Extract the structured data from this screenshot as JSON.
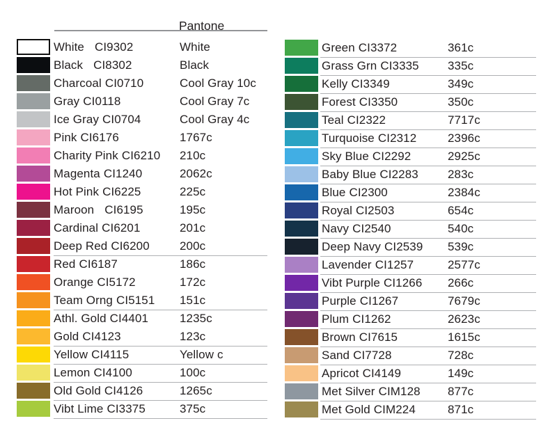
{
  "header": {
    "pantone_label": "Pantone"
  },
  "text_color": "#231f20",
  "rule_color": "#aeb0b3",
  "columns": [
    {
      "side": "left",
      "rows": [
        {
          "name": "White",
          "code": "CI9302",
          "pantone": "White",
          "hex": "#ffffff",
          "border": true,
          "wide_gap": true,
          "underline": false
        },
        {
          "name": "Black",
          "code": "CI8302",
          "pantone": "Black",
          "hex": "#0b0d10",
          "border": false,
          "wide_gap": true,
          "underline": false
        },
        {
          "name": "Charcoal",
          "code": "CI0710",
          "pantone": "Cool Gray 10c",
          "hex": "#646b66",
          "border": false,
          "wide_gap": false,
          "underline": false
        },
        {
          "name": "Gray",
          "code": "CI0118",
          "pantone": "Cool Gray 7c",
          "hex": "#9aa0a1",
          "border": false,
          "wide_gap": false,
          "underline": false
        },
        {
          "name": "Ice Gray",
          "code": "CI0704",
          "pantone": "Cool Gray 4c",
          "hex": "#c2c4c6",
          "border": false,
          "wide_gap": false,
          "underline": false
        },
        {
          "name": "Pink",
          "code": "CI6176",
          "pantone": "1767c",
          "hex": "#f4a6c1",
          "border": false,
          "wide_gap": false,
          "underline": false
        },
        {
          "name": "Charity Pink",
          "code": "CI6210",
          "pantone": "210c",
          "hex": "#f27eb4",
          "border": false,
          "wide_gap": false,
          "underline": false
        },
        {
          "name": "Magenta",
          "code": "CI1240",
          "pantone": "2062c",
          "hex": "#b34b97",
          "border": false,
          "wide_gap": false,
          "underline": false
        },
        {
          "name": "Hot Pink",
          "code": "CI6225",
          "pantone": "225c",
          "hex": "#ed128d",
          "border": false,
          "wide_gap": false,
          "underline": false
        },
        {
          "name": "Maroon",
          "code": "CI6195",
          "pantone": "195c",
          "hex": "#7b3140",
          "border": false,
          "wide_gap": true,
          "underline": false
        },
        {
          "name": "Cardinal",
          "code": "CI6201",
          "pantone": "201c",
          "hex": "#9b2143",
          "border": false,
          "wide_gap": false,
          "underline": false
        },
        {
          "name": "Deep Red",
          "code": "CI6200",
          "pantone": "200c",
          "hex": "#aa2228",
          "border": false,
          "wide_gap": false,
          "underline": true
        },
        {
          "name": "Red",
          "code": "CI6187",
          "pantone": "186c",
          "hex": "#c9252c",
          "border": false,
          "wide_gap": false,
          "underline": false
        },
        {
          "name": "Orange",
          "code": "CI5172",
          "pantone": "172c",
          "hex": "#f05123",
          "border": false,
          "wide_gap": false,
          "underline": false
        },
        {
          "name": "Team Orng",
          "code": "CI5151",
          "pantone": "151c",
          "hex": "#f6921e",
          "border": false,
          "wide_gap": false,
          "underline": true
        },
        {
          "name": "Athl. Gold",
          "code": "CI4401",
          "pantone": "1235c",
          "hex": "#fbac18",
          "border": false,
          "wide_gap": false,
          "underline": false
        },
        {
          "name": "Gold",
          "code": "CI4123",
          "pantone": "123c",
          "hex": "#fcb92e",
          "border": false,
          "wide_gap": false,
          "underline": true
        },
        {
          "name": "Yellow",
          "code": "CI4115",
          "pantone": "Yellow c",
          "hex": "#fdd905",
          "border": false,
          "wide_gap": false,
          "underline": true
        },
        {
          "name": "Lemon",
          "code": "CI4100",
          "pantone": "100c",
          "hex": "#f0e467",
          "border": false,
          "wide_gap": false,
          "underline": true
        },
        {
          "name": "Old Gold",
          "code": "CI4126",
          "pantone": "1265c",
          "hex": "#886c2a",
          "border": false,
          "wide_gap": false,
          "underline": true
        },
        {
          "name": "Vibt Lime",
          "code": "CI3375",
          "pantone": "375c",
          "hex": "#a6cb3e",
          "border": false,
          "wide_gap": false,
          "underline": true
        }
      ]
    },
    {
      "side": "right",
      "rows": [
        {
          "name": "Green",
          "code": "CI3372",
          "pantone": "361c",
          "hex": "#42a748",
          "border": false,
          "wide_gap": false,
          "underline": true
        },
        {
          "name": "Grass Grn",
          "code": "CI3335",
          "pantone": "335c",
          "hex": "#0d7d5e",
          "border": false,
          "wide_gap": false,
          "underline": true
        },
        {
          "name": "Kelly",
          "code": "CI3349",
          "pantone": "349c",
          "hex": "#166f3a",
          "border": false,
          "wide_gap": false,
          "underline": true
        },
        {
          "name": "Forest",
          "code": "CI3350",
          "pantone": "350c",
          "hex": "#3c5433",
          "border": false,
          "wide_gap": false,
          "underline": true
        },
        {
          "name": "Teal",
          "code": "CI2322",
          "pantone": "7717c",
          "hex": "#177080",
          "border": false,
          "wide_gap": false,
          "underline": true
        },
        {
          "name": "Turquoise",
          "code": "CI2312",
          "pantone": "2396c",
          "hex": "#2aa3c3",
          "border": false,
          "wide_gap": false,
          "underline": true
        },
        {
          "name": "Sky Blue",
          "code": "CI2292",
          "pantone": "2925c",
          "hex": "#41aee4",
          "border": false,
          "wide_gap": false,
          "underline": true
        },
        {
          "name": "Baby Blue",
          "code": "CI2283",
          "pantone": "283c",
          "hex": "#9cc1e7",
          "border": false,
          "wide_gap": false,
          "underline": true
        },
        {
          "name": "Blue",
          "code": "CI2300",
          "pantone": "2384c",
          "hex": "#1767ac",
          "border": false,
          "wide_gap": false,
          "underline": true
        },
        {
          "name": "Royal",
          "code": "CI2503",
          "pantone": "654c",
          "hex": "#293f82",
          "border": false,
          "wide_gap": false,
          "underline": true
        },
        {
          "name": "Navy",
          "code": "CI2540",
          "pantone": "540c",
          "hex": "#143349",
          "border": false,
          "wide_gap": false,
          "underline": true
        },
        {
          "name": "Deep Navy",
          "code": "CI2539",
          "pantone": "539c",
          "hex": "#17222e",
          "border": false,
          "wide_gap": false,
          "underline": true
        },
        {
          "name": "Lavender",
          "code": "CI1257",
          "pantone": "2577c",
          "hex": "#aa80c5",
          "border": false,
          "wide_gap": false,
          "underline": true
        },
        {
          "name": "Vibt Purple",
          "code": "CI1266",
          "pantone": "266c",
          "hex": "#7227a7",
          "border": false,
          "wide_gap": false,
          "underline": true
        },
        {
          "name": "Purple",
          "code": "CI1267",
          "pantone": "7679c",
          "hex": "#5b3592",
          "border": false,
          "wide_gap": false,
          "underline": true
        },
        {
          "name": "Plum",
          "code": "CI1262",
          "pantone": "2623c",
          "hex": "#712a71",
          "border": false,
          "wide_gap": false,
          "underline": true
        },
        {
          "name": "Brown",
          "code": "CI7615",
          "pantone": "1615c",
          "hex": "#85522a",
          "border": false,
          "wide_gap": false,
          "underline": true
        },
        {
          "name": "Sand",
          "code": "CI7728",
          "pantone": "728c",
          "hex": "#c89b72",
          "border": false,
          "wide_gap": false,
          "underline": true
        },
        {
          "name": "Apricot",
          "code": "CI4149",
          "pantone": "149c",
          "hex": "#f9c286",
          "border": false,
          "wide_gap": false,
          "underline": true
        },
        {
          "name": "Met Silver",
          "code": "CIM128",
          "pantone": "877c",
          "hex": "#8e97a0",
          "border": false,
          "wide_gap": false,
          "underline": true
        },
        {
          "name": "Met Gold",
          "code": "CIM224",
          "pantone": "871c",
          "hex": "#9b8a50",
          "border": false,
          "wide_gap": false,
          "underline": true
        }
      ]
    }
  ]
}
